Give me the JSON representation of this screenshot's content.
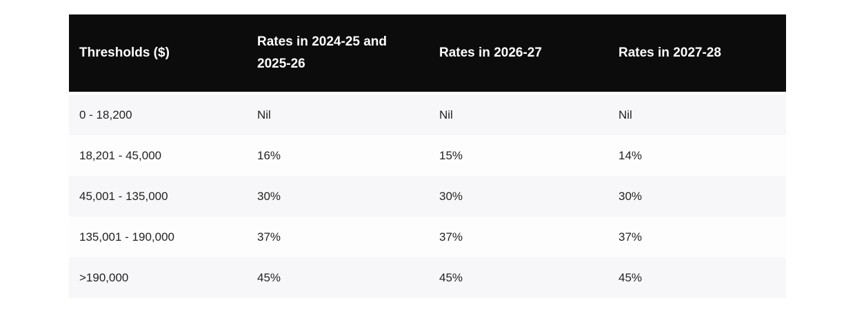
{
  "chart_data": {
    "type": "table",
    "columns": [
      "Thresholds ($)",
      "Rates in 2024-25 and 2025-26",
      "Rates in 2026-27",
      "Rates in 2027-28"
    ],
    "rows": [
      [
        "0 - 18,200",
        "Nil",
        "Nil",
        "Nil"
      ],
      [
        "18,201 - 45,000",
        "16%",
        "15%",
        "14%"
      ],
      [
        "45,001 - 135,000",
        "30%",
        "30%",
        "30%"
      ],
      [
        "135,001 - 190,000",
        "37%",
        "37%",
        "37%"
      ],
      [
        ">190,000",
        "45%",
        "45%",
        "45%"
      ]
    ],
    "layout": {
      "header_position": "top",
      "row_striping": "odd-rows-shaded",
      "grid": "off"
    }
  },
  "colors": {
    "header_background": "#0d0c0d",
    "header_text": "#ffffff",
    "row_stripe": "#f7f7f9",
    "row_plain": "#fdfdfe",
    "body_text": "#222222",
    "page_background": "#ffffff"
  }
}
